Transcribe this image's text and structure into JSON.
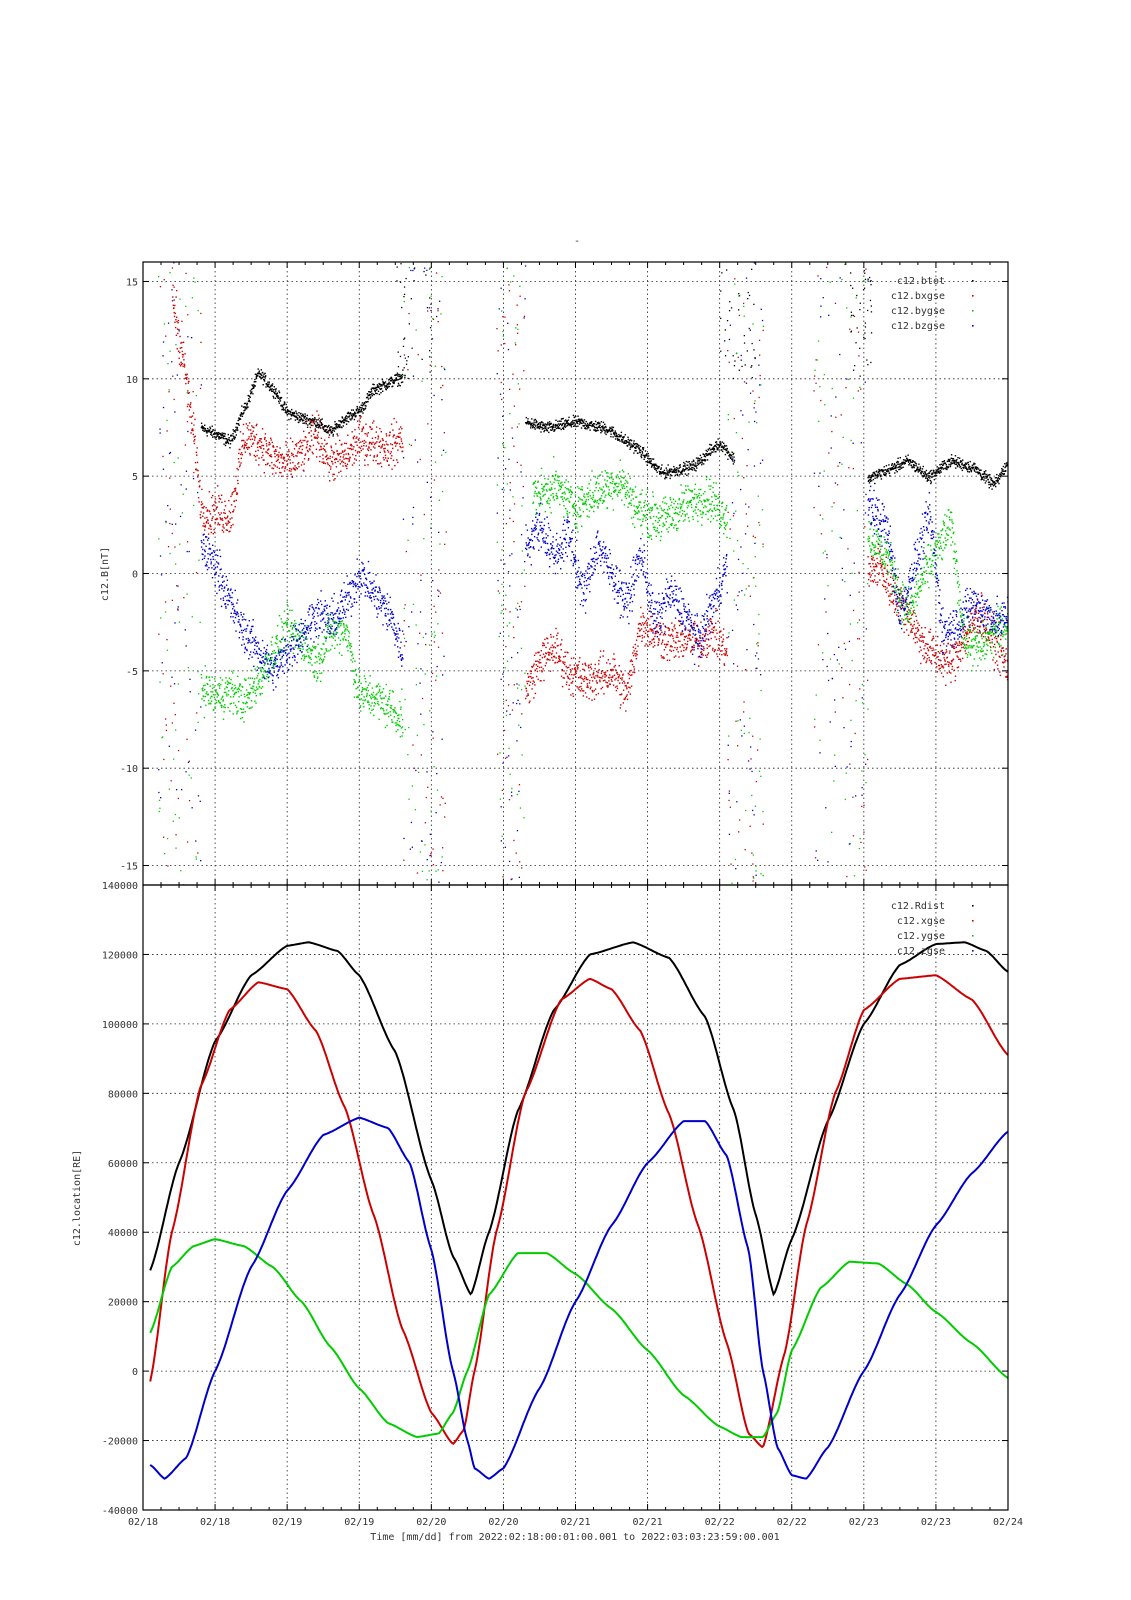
{
  "page_title": "-",
  "chart_data": [
    {
      "type": "scatter",
      "ylabel": "c12.B[nT]",
      "xlim": [
        0,
        12
      ],
      "ylim": [
        -16,
        16
      ],
      "yticks": [
        15,
        10,
        5,
        0,
        -5,
        -10,
        -15
      ],
      "grid": true,
      "legend_position": "top-right",
      "series": [
        {
          "name": "c12.btot",
          "color": "#000000",
          "segments": [
            {
              "x": [
                0.8,
                1.0,
                1.2,
                1.4,
                1.6,
                1.8,
                2.0,
                2.2,
                2.4,
                2.6,
                2.8,
                3.0,
                3.2,
                3.4,
                3.5,
                3.6
              ],
              "y": [
                7.5,
                7.2,
                6.8,
                8.5,
                10.3,
                9.5,
                8.3,
                8.0,
                7.8,
                7.3,
                8.0,
                8.4,
                9.5,
                9.8,
                10.0,
                10.1
              ]
            },
            {
              "x": [
                5.3,
                5.6,
                6.0,
                6.4,
                6.8,
                7.2,
                7.6,
                8.0,
                8.2
              ],
              "y": [
                7.8,
                7.5,
                7.8,
                7.5,
                6.6,
                5.2,
                5.5,
                6.7,
                5.9
              ]
            },
            {
              "x": [
                10.05,
                10.3,
                10.6,
                10.9,
                11.2,
                11.5,
                11.8,
                12.0
              ],
              "y": [
                4.9,
                5.3,
                5.8,
                5.0,
                5.8,
                5.5,
                4.6,
                5.7
              ]
            }
          ]
        },
        {
          "name": "c12.bxgse",
          "color": "#cc0000",
          "segments": [
            {
              "x": [
                0.4,
                0.55,
                0.7,
                0.8,
                0.9,
                1.0,
                1.2,
                1.4,
                1.6,
                1.8,
                2.0,
                2.2,
                2.4,
                2.6,
                2.8,
                3.0,
                3.2,
                3.4,
                3.6
              ],
              "y": [
                14.0,
                11.0,
                7.0,
                3.5,
                3.0,
                3.2,
                3.0,
                7.0,
                6.8,
                6.0,
                5.6,
                6.2,
                7.2,
                5.8,
                6.0,
                6.9,
                6.8,
                6.5,
                7.0
              ]
            },
            {
              "x": [
                5.3,
                5.5,
                5.7,
                5.9,
                6.1,
                6.3,
                6.5,
                6.7,
                6.9,
                7.1,
                7.3,
                7.5,
                7.7,
                7.9,
                8.1
              ],
              "y": [
                -6.0,
                -4.5,
                -3.8,
                -5.0,
                -5.5,
                -5.3,
                -5.0,
                -6.2,
                -2.5,
                -3.0,
                -3.5,
                -3.3,
                -3.5,
                -3.0,
                -4.0
              ]
            },
            {
              "x": [
                10.05,
                10.2,
                10.4,
                10.6,
                10.8,
                11.0,
                11.2,
                11.4,
                11.6,
                11.8,
                12.0
              ],
              "y": [
                0.0,
                0.5,
                -1.0,
                -2.0,
                -3.5,
                -4.2,
                -4.6,
                -3.2,
                -2.0,
                -3.5,
                -4.8
              ]
            }
          ]
        },
        {
          "name": "c12.bygse",
          "color": "#00cc00",
          "segments": [
            {
              "x": [
                0.8,
                1.0,
                1.2,
                1.4,
                1.6,
                1.8,
                2.0,
                2.2,
                2.4,
                2.6,
                2.8,
                3.0,
                3.2,
                3.4,
                3.6
              ],
              "y": [
                -5.8,
                -6.3,
                -6.0,
                -6.5,
                -5.5,
                -4.0,
                -2.8,
                -3.5,
                -4.5,
                -3.0,
                -2.8,
                -6.2,
                -6.3,
                -6.8,
                -7.5
              ]
            },
            {
              "x": [
                5.4,
                5.7,
                6.0,
                6.3,
                6.6,
                6.9,
                7.2,
                7.5,
                7.8,
                8.1
              ],
              "y": [
                4.0,
                4.5,
                3.5,
                4.2,
                4.8,
                3.2,
                2.8,
                3.5,
                4.0,
                3.0
              ]
            },
            {
              "x": [
                10.05,
                10.3,
                10.6,
                10.9,
                11.2,
                11.4,
                11.6,
                11.8,
                12.0
              ],
              "y": [
                2.0,
                1.0,
                -2.0,
                0.5,
                2.5,
                -3.5,
                -3.8,
                -3.0,
                -2.5
              ]
            }
          ]
        },
        {
          "name": "c12.bzgse",
          "color": "#0000cc",
          "segments": [
            {
              "x": [
                0.8,
                1.0,
                1.2,
                1.4,
                1.6,
                1.8,
                2.0,
                2.2,
                2.4,
                2.6,
                2.8,
                3.0,
                3.2,
                3.4,
                3.6
              ],
              "y": [
                1.5,
                0.5,
                -1.5,
                -3.0,
                -4.0,
                -5.0,
                -4.0,
                -3.0,
                -2.0,
                -2.5,
                -1.5,
                0.0,
                -1.0,
                -2.0,
                -4.0
              ]
            },
            {
              "x": [
                5.3,
                5.5,
                5.7,
                5.9,
                6.1,
                6.3,
                6.5,
                6.7,
                6.9,
                7.1,
                7.3,
                7.5,
                7.7,
                7.9,
                8.1
              ],
              "y": [
                1.5,
                2.5,
                1.0,
                2.0,
                -1.0,
                1.5,
                0.0,
                -1.5,
                1.0,
                -2.5,
                -1.0,
                -2.0,
                -3.5,
                -1.5,
                0.5
              ]
            },
            {
              "x": [
                10.05,
                10.3,
                10.5,
                10.7,
                10.9,
                11.1,
                11.3,
                11.5,
                11.7,
                11.9,
                12.0
              ],
              "y": [
                3.5,
                2.5,
                -2.0,
                0.5,
                3.0,
                -3.0,
                -2.5,
                -1.5,
                -2.0,
                -2.5,
                -2.0
              ]
            }
          ]
        }
      ]
    },
    {
      "type": "line",
      "ylabel": "c12.location[RE]",
      "xlabel": "Time [mm/dd]  from 2022:02:18:00:01:00.001  to  2022:03:03:23:59:00.001",
      "x_tick_labels": [
        "02/18",
        "02/18",
        "02/19",
        "02/19",
        "02/20",
        "02/20",
        "02/21",
        "02/21",
        "02/22",
        "02/22",
        "02/23",
        "02/23",
        "02/24"
      ],
      "xlim": [
        0,
        12
      ],
      "ylim": [
        -40000,
        140000
      ],
      "yticks": [
        140000,
        120000,
        100000,
        80000,
        60000,
        40000,
        20000,
        0,
        -20000,
        -40000
      ],
      "grid": true,
      "legend_position": "top-right",
      "series": [
        {
          "name": "c12.Rdist",
          "color": "#000000",
          "x": [
            0.1,
            0.5,
            1.0,
            1.5,
            2.0,
            2.3,
            2.7,
            3.0,
            3.5,
            4.0,
            4.3,
            4.55,
            4.8,
            5.2,
            5.7,
            6.2,
            6.8,
            7.3,
            7.8,
            8.2,
            8.5,
            8.75,
            9.0,
            9.5,
            10.0,
            10.5,
            11.0,
            11.4,
            11.7,
            12.0
          ],
          "y": [
            29000,
            60000,
            95000,
            114000,
            122500,
            123500,
            121000,
            114000,
            92000,
            55000,
            33000,
            22000,
            40000,
            75000,
            104000,
            120000,
            123500,
            119000,
            102000,
            75000,
            45000,
            22000,
            38000,
            72000,
            100000,
            117000,
            123000,
            123500,
            121000,
            115000
          ]
        },
        {
          "name": "c12.xgse",
          "color": "#cc0000",
          "x": [
            0.1,
            0.4,
            0.8,
            1.2,
            1.6,
            2.0,
            2.4,
            2.8,
            3.2,
            3.6,
            4.0,
            4.3,
            4.45,
            4.6,
            4.9,
            5.3,
            5.8,
            6.2,
            6.5,
            6.9,
            7.3,
            7.7,
            8.1,
            8.4,
            8.6,
            8.9,
            9.2,
            9.6,
            10.0,
            10.5,
            11.0,
            11.5,
            12.0
          ],
          "y": [
            -3000,
            40000,
            82000,
            104000,
            112000,
            110000,
            98000,
            76000,
            45000,
            12000,
            -12000,
            -21000,
            -17000,
            0,
            40000,
            80000,
            107000,
            113000,
            110000,
            98000,
            74000,
            42000,
            8000,
            -18000,
            -22000,
            5000,
            42000,
            80000,
            104000,
            113000,
            114000,
            107000,
            91000
          ]
        },
        {
          "name": "c12.ygse",
          "color": "#00cc00",
          "x": [
            0.1,
            0.4,
            0.7,
            1.0,
            1.4,
            1.8,
            2.2,
            2.6,
            3.0,
            3.4,
            3.8,
            4.1,
            4.3,
            4.5,
            4.8,
            5.2,
            5.6,
            6.0,
            6.5,
            7.0,
            7.5,
            8.0,
            8.3,
            8.6,
            8.8,
            9.0,
            9.4,
            9.8,
            10.2,
            10.6,
            11.0,
            11.5,
            12.0
          ],
          "y": [
            11000,
            30000,
            36000,
            38000,
            36000,
            30000,
            20000,
            7000,
            -5000,
            -15000,
            -19000,
            -18000,
            -12000,
            0,
            22000,
            34000,
            34000,
            28000,
            18000,
            6000,
            -7000,
            -16000,
            -19000,
            -19000,
            -12000,
            6000,
            24000,
            31500,
            31000,
            25000,
            17000,
            8000,
            -2000
          ]
        },
        {
          "name": "c12.zgse",
          "color": "#0000cc",
          "x": [
            0.1,
            0.3,
            0.6,
            1.0,
            1.5,
            2.0,
            2.5,
            3.0,
            3.4,
            3.7,
            4.0,
            4.3,
            4.5,
            4.6,
            4.8,
            5.0,
            5.5,
            6.0,
            6.5,
            7.0,
            7.5,
            7.8,
            8.1,
            8.4,
            8.6,
            8.8,
            9.0,
            9.2,
            9.5,
            10.0,
            10.5,
            11.0,
            11.5,
            12.0
          ],
          "y": [
            -27000,
            -31000,
            -25000,
            0,
            30000,
            52000,
            68000,
            73000,
            70000,
            60000,
            35000,
            0,
            -20000,
            -28000,
            -31000,
            -28000,
            -5000,
            20000,
            42000,
            60000,
            72000,
            72000,
            62000,
            35000,
            0,
            -22000,
            -30000,
            -31000,
            -22000,
            0,
            22000,
            42000,
            57000,
            69000
          ]
        }
      ]
    }
  ]
}
